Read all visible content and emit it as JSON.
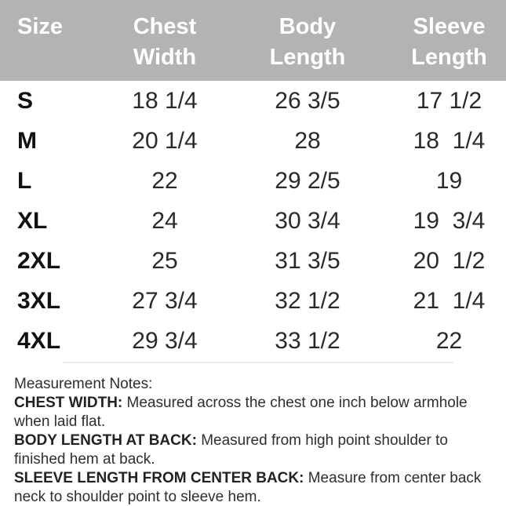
{
  "table": {
    "columns": [
      "Size",
      "Chest\nWidth",
      "Body\nLength",
      "Sleeve\nLength"
    ],
    "rows": [
      {
        "size": "S",
        "chest": "18 1/4",
        "body": "26 3/5",
        "sleeve": "17 1/2"
      },
      {
        "size": "M",
        "chest": "20 1/4",
        "body": "28",
        "sleeve": "18  1/4"
      },
      {
        "size": "L",
        "chest": "22",
        "body": "29 2/5",
        "sleeve": "19"
      },
      {
        "size": "XL",
        "chest": "24",
        "body": "30 3/4",
        "sleeve": "19  3/4"
      },
      {
        "size": "2XL",
        "chest": "25",
        "body": "31 3/5",
        "sleeve": "20  1/2"
      },
      {
        "size": "3XL",
        "chest": "27 3/4",
        "body": "32 1/2",
        "sleeve": "21  1/4"
      },
      {
        "size": "4XL",
        "chest": "29 3/4",
        "body": "33 1/2",
        "sleeve": "22"
      }
    ]
  },
  "notes": {
    "title": "Measurement Notes:",
    "items": [
      {
        "label": "CHEST WIDTH:",
        "text": " Measured across the chest one inch below armhole\nwhen laid flat."
      },
      {
        "label": "BODY LENGTH AT BACK:",
        "text": " Measured from high point shoulder to\nfinished hem at back."
      },
      {
        "label": "SLEEVE LENGTH FROM CENTER BACK:",
        "text": " Measure from center back\nneck to shoulder point to sleeve hem."
      }
    ]
  },
  "colors": {
    "header_bg": "#b3b3b3",
    "header_text": "#ffffff",
    "body_text": "#2a2a2a",
    "divider": "#ececec"
  }
}
